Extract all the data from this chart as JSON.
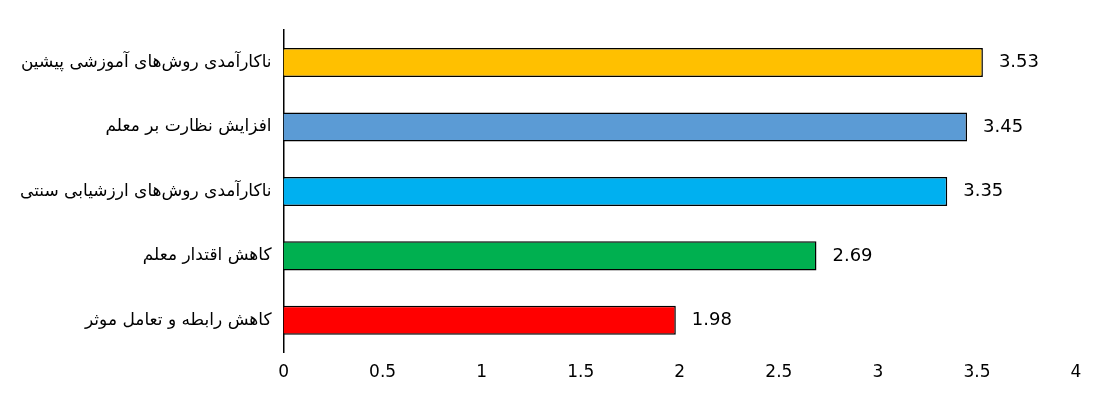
{
  "chart_data": {
    "type": "bar",
    "orientation": "horizontal",
    "categories": [
      "ناکارآمدی روش‌های آموزشی پیشین",
      "افزایش نظارت بر معلم",
      "ناکارآمدی روش‌های ارزشیابی سنتی",
      "کاهش اقتدار معلم",
      "کاهش رابطه و تعامل موثر"
    ],
    "values": [
      3.53,
      3.45,
      3.35,
      2.69,
      1.98
    ],
    "colors": [
      "#ffc000",
      "#5b9bd5",
      "#00b0f0",
      "#00b050",
      "#ff0000"
    ],
    "xlim": [
      0,
      4
    ],
    "xticks": [
      0,
      0.5,
      1,
      1.5,
      2,
      2.5,
      3,
      3.5,
      4
    ],
    "grid": false,
    "legend": false,
    "data_labels": true
  }
}
